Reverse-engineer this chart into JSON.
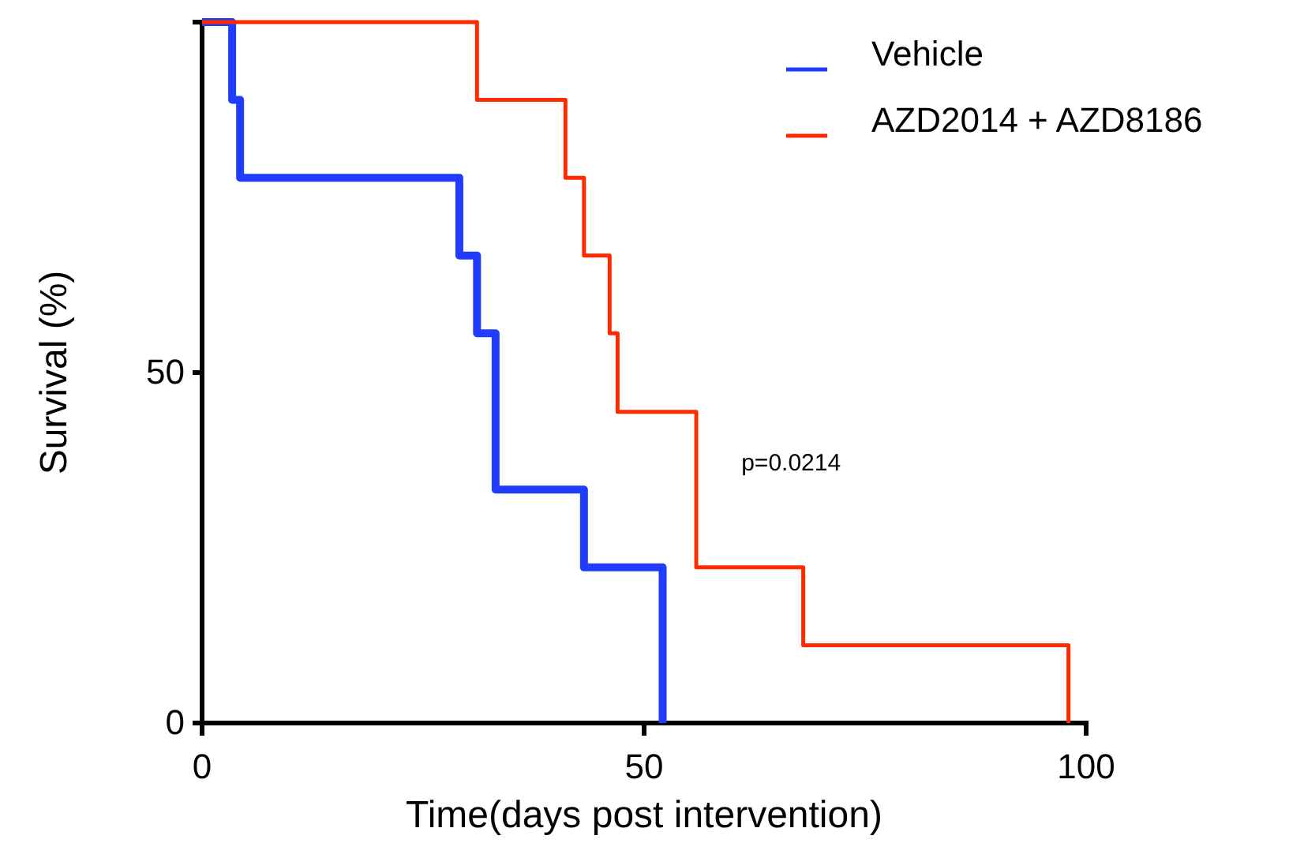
{
  "chart_data": {
    "type": "step",
    "xlabel": "Time(days post intervention)",
    "ylabel": "Survival (%)",
    "xlim": [
      0,
      100
    ],
    "xticks": [
      0,
      50,
      100
    ],
    "ylim": [
      0,
      100
    ],
    "yticks": [
      0,
      50,
      {
        "value": 100,
        "label": null
      }
    ],
    "grid": false,
    "legend": "top right",
    "marker": "none",
    "line_style": "solid",
    "annotations": [
      "p=0.0214"
    ],
    "series": [
      {
        "name": "Vehicle",
        "color": "#1f3cff",
        "x": [
          0,
          3.4,
          4.3,
          29.1,
          31.1,
          33.2,
          43.2,
          52.1
        ],
        "values": [
          100,
          88.9,
          77.8,
          66.7,
          55.6,
          33.3,
          22.2,
          0
        ]
      },
      {
        "name": "AZD2014 + AZD8186",
        "color": "#ff2a00",
        "x": [
          0,
          31.1,
          41.1,
          43.2,
          46.1,
          47,
          55.9,
          68,
          98
        ],
        "values": [
          100,
          88.9,
          77.8,
          66.7,
          55.6,
          44.4,
          22.2,
          11.1,
          0
        ]
      }
    ]
  }
}
